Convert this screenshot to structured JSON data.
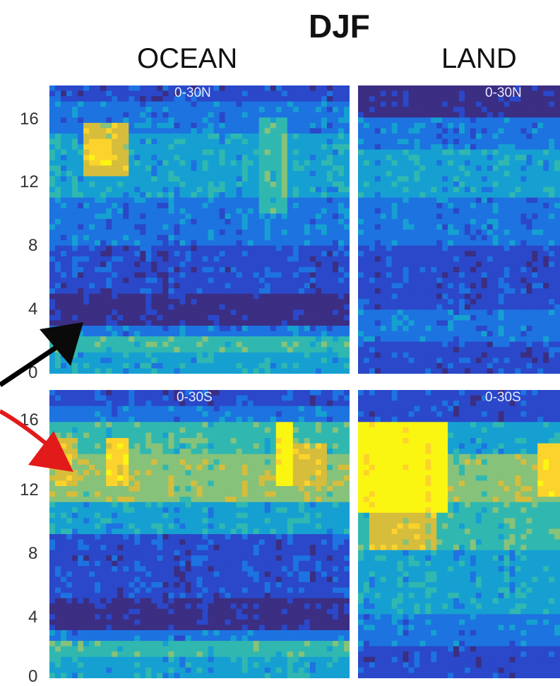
{
  "header": {
    "title": "DJF",
    "columns": [
      "OCEAN",
      "LAND"
    ]
  },
  "y_ticks": [
    "16",
    "12",
    "8",
    "4",
    "0"
  ],
  "y_ticks_bottom": [
    "16",
    "12",
    "8",
    "4",
    "0"
  ],
  "colors": {
    "cmap": [
      "#3b2e83",
      "#2a48c9",
      "#1d73e0",
      "#16a0d2",
      "#30b8b0",
      "#86c27a",
      "#d6bd3c",
      "#fcd32c",
      "#fbf512"
    ],
    "arrow_black": "#000000",
    "arrow_red": "#e31a1a"
  },
  "chart_data": [
    {
      "type": "heatmap",
      "panel": "OCEAN",
      "label": "0-30N",
      "ylim": [
        0,
        18
      ],
      "yticks": [
        0,
        4,
        8,
        12,
        16
      ],
      "bands": [
        {
          "y": [
            0,
            1.2
          ],
          "level": 3
        },
        {
          "y": [
            1.2,
            2.2
          ],
          "level": 4
        },
        {
          "y": [
            2.2,
            3
          ],
          "level": 2
        },
        {
          "y": [
            3,
            5
          ],
          "level": 0
        },
        {
          "y": [
            5,
            8
          ],
          "level": 1
        },
        {
          "y": [
            8,
            11
          ],
          "level": 2
        },
        {
          "y": [
            11,
            15
          ],
          "level": 3
        },
        {
          "y": [
            15,
            17
          ],
          "level": 2
        },
        {
          "y": [
            17,
            18
          ],
          "level": 1
        }
      ],
      "hotspots": [
        {
          "x": [
            0.12,
            0.26
          ],
          "y": [
            12.5,
            15.5
          ],
          "level": 6
        },
        {
          "x": [
            0.14,
            0.21
          ],
          "y": [
            13,
            14.5
          ],
          "level": 7
        },
        {
          "x": [
            0.7,
            0.8
          ],
          "y": [
            10,
            16
          ],
          "level": 4
        },
        {
          "x": [
            0.78,
            0.8
          ],
          "y": [
            11,
            15
          ],
          "level": 5
        }
      ]
    },
    {
      "type": "heatmap",
      "panel": "LAND",
      "label": "0-30N",
      "ylim": [
        0,
        18
      ],
      "yticks": [
        0,
        4,
        8,
        12,
        16
      ],
      "bands": [
        {
          "y": [
            0,
            2
          ],
          "level": 1
        },
        {
          "y": [
            2,
            4
          ],
          "level": 2
        },
        {
          "y": [
            4,
            8
          ],
          "level": 1
        },
        {
          "y": [
            8,
            11
          ],
          "level": 2
        },
        {
          "y": [
            11,
            14
          ],
          "level": 3
        },
        {
          "y": [
            14,
            16
          ],
          "level": 2
        },
        {
          "y": [
            16,
            18
          ],
          "level": 0
        }
      ],
      "hotspots": []
    },
    {
      "type": "heatmap",
      "panel": "OCEAN",
      "label": "0-30S",
      "ylim": [
        0,
        18
      ],
      "yticks": [
        0,
        4,
        8,
        12,
        16
      ],
      "bands": [
        {
          "y": [
            0,
            1.2
          ],
          "level": 3
        },
        {
          "y": [
            1.2,
            2.2
          ],
          "level": 4
        },
        {
          "y": [
            2.2,
            3
          ],
          "level": 2
        },
        {
          "y": [
            3,
            5
          ],
          "level": 0
        },
        {
          "y": [
            5,
            9
          ],
          "level": 1
        },
        {
          "y": [
            9,
            11
          ],
          "level": 3
        },
        {
          "y": [
            11,
            14
          ],
          "level": 5
        },
        {
          "y": [
            14,
            16
          ],
          "level": 4
        },
        {
          "y": [
            16,
            17
          ],
          "level": 2
        },
        {
          "y": [
            17,
            18
          ],
          "level": 1
        }
      ],
      "hotspots": [
        {
          "x": [
            0.02,
            0.1
          ],
          "y": [
            12,
            15
          ],
          "level": 6
        },
        {
          "x": [
            0.18,
            0.26
          ],
          "y": [
            12,
            15
          ],
          "level": 7
        },
        {
          "x": [
            0.76,
            0.82
          ],
          "y": [
            12,
            16
          ],
          "level": 8
        },
        {
          "x": [
            0.82,
            0.92
          ],
          "y": [
            12,
            14.5
          ],
          "level": 6
        }
      ]
    },
    {
      "type": "heatmap",
      "panel": "LAND",
      "label": "0-30S",
      "ylim": [
        0,
        18
      ],
      "yticks": [
        0,
        4,
        8,
        12,
        16
      ],
      "bands": [
        {
          "y": [
            0,
            2
          ],
          "level": 1
        },
        {
          "y": [
            2,
            4
          ],
          "level": 2
        },
        {
          "y": [
            4,
            8
          ],
          "level": 3
        },
        {
          "y": [
            8,
            11
          ],
          "level": 4
        },
        {
          "y": [
            11,
            14
          ],
          "level": 5
        },
        {
          "y": [
            14,
            16
          ],
          "level": 3
        },
        {
          "y": [
            16,
            18
          ],
          "level": 1
        }
      ],
      "hotspots": [
        {
          "x": [
            0.0,
            0.45
          ],
          "y": [
            10.5,
            16
          ],
          "level": 8
        },
        {
          "x": [
            0.05,
            0.4
          ],
          "y": [
            8,
            10.5
          ],
          "level": 6
        },
        {
          "x": [
            0.88,
            1.0
          ],
          "y": [
            11.5,
            14.5
          ],
          "level": 7
        }
      ]
    }
  ]
}
